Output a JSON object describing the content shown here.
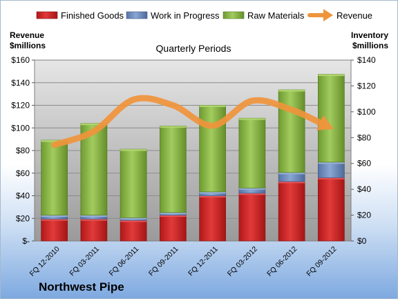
{
  "chart_data": {
    "type": "bar",
    "title": "Quarterly Periods",
    "company": "Northwest Pipe",
    "categories": [
      "FQ 12-2010",
      "FQ 03-2011",
      "FQ 06-2011",
      "FQ 09-2011",
      "FQ 12-2011",
      "FQ 03-2012",
      "FQ 06-2012",
      "FQ 09-2012"
    ],
    "series": [
      {
        "name": "Finished Goods",
        "axis": "right",
        "stack": true,
        "color": "#d42a2a",
        "values": [
          17,
          17,
          16,
          20,
          35,
          37,
          46,
          49
        ]
      },
      {
        "name": "Work in Progress",
        "axis": "right",
        "stack": true,
        "color": "#6f8fc0",
        "values": [
          3,
          3,
          2,
          2,
          3,
          4,
          7,
          12
        ]
      },
      {
        "name": "Raw Materials",
        "axis": "right",
        "stack": true,
        "color": "#8cb84a",
        "values": [
          58,
          71,
          53,
          67,
          67,
          54,
          64,
          68
        ]
      },
      {
        "name": "Revenue",
        "axis": "left",
        "type": "line",
        "color": "#f0943c",
        "values": [
          85,
          97,
          125,
          120,
          102,
          124,
          116,
          100
        ]
      }
    ],
    "left_axis": {
      "label_line1": "Revenue",
      "label_line2": "$millions",
      "ylim": [
        0,
        160
      ],
      "step": 20,
      "tick_labels": [
        "$-",
        "$20",
        "$40",
        "$60",
        "$80",
        "$100",
        "$120",
        "$140",
        "$160"
      ]
    },
    "right_axis": {
      "label_line1": "Inventory",
      "label_line2": "$millions",
      "ylim": [
        0,
        140
      ],
      "step": 20,
      "tick_labels": [
        "$0",
        "$20",
        "$40",
        "$60",
        "$80",
        "$100",
        "$120",
        "$140"
      ]
    },
    "legend_position": "top",
    "grid": true
  }
}
